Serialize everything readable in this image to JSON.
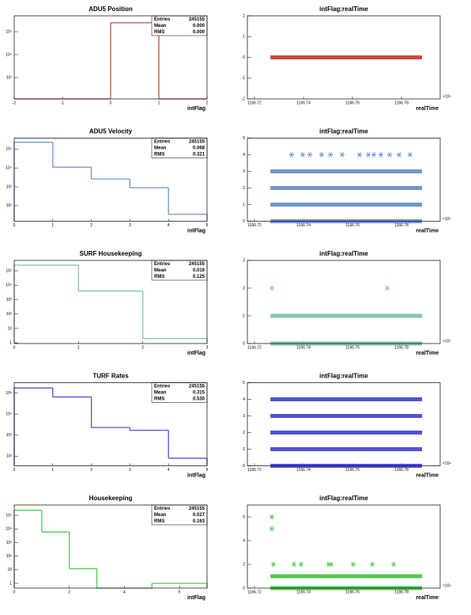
{
  "chart_data": [
    {
      "type": "histogram",
      "title": "ADU5 Position",
      "xlabel": "intFlag",
      "color": "#cc4a44",
      "log_y": true,
      "bins": [
        -2,
        -1,
        0,
        1,
        2
      ],
      "values": [
        0,
        0,
        245155,
        0
      ],
      "xlim": [
        -2,
        2
      ],
      "xticks": [
        -2,
        -1,
        0,
        1,
        2
      ],
      "ylim": [
        117,
        490000
      ],
      "yticks": [
        {
          "value": 1000,
          "label": "10³"
        },
        {
          "value": 10000,
          "label": "10⁴"
        },
        {
          "value": 100000,
          "label": "10⁵"
        }
      ],
      "stats": [
        {
          "label": "Entries",
          "value": "245155"
        },
        {
          "label": "Mean",
          "value": "0.000"
        },
        {
          "label": "RMS",
          "value": "0.000"
        }
      ]
    },
    {
      "type": "scatter",
      "title": "intFlag:realTime",
      "xlabel": "realTime",
      "x_multiplier": "×10⁹",
      "color": "#cc4a44",
      "xlim": [
        1166.7171,
        1166.7958
      ],
      "xticks": [
        1166.72,
        1166.74,
        1166.76,
        1166.78
      ],
      "ylim": [
        -2,
        2
      ],
      "yticks": [
        -2,
        -1,
        0,
        1,
        2
      ],
      "bands": [
        {
          "y": 0,
          "x": [
            1166.7265,
            1166.7884
          ]
        }
      ],
      "points": {
        "x": [],
        "y": []
      }
    },
    {
      "type": "histogram",
      "title": "ADU5 Velocity",
      "xlabel": "intFlag",
      "color": "#7094d0",
      "log_y": true,
      "bins": [
        0,
        1,
        2,
        3,
        4,
        5
      ],
      "values": [
        228000,
        11000,
        2600,
        900,
        35
      ],
      "xlim": [
        0,
        5
      ],
      "xticks": [
        0,
        1,
        2,
        3,
        4,
        5
      ],
      "ylim": [
        15,
        380000
      ],
      "yticks": [
        {
          "value": 100,
          "label": "10²"
        },
        {
          "value": 1000,
          "label": "10³"
        },
        {
          "value": 10000,
          "label": "10⁴"
        },
        {
          "value": 100000,
          "label": "10⁵"
        }
      ],
      "stats": [
        {
          "label": "Entries",
          "value": "245155"
        },
        {
          "label": "Mean",
          "value": "0.068"
        },
        {
          "label": "RMS",
          "value": "0.321"
        }
      ]
    },
    {
      "type": "scatter",
      "title": "intFlag:realTime",
      "xlabel": "realTime",
      "x_multiplier": "×10⁹",
      "color": "#7094d0",
      "xlim": [
        1166.7171,
        1166.7958
      ],
      "xticks": [
        1166.72,
        1166.74,
        1166.76,
        1166.78
      ],
      "ylim": [
        0,
        5
      ],
      "yticks": [
        0,
        1,
        2,
        3,
        4,
        5
      ],
      "bands": [
        {
          "y": 0,
          "x": [
            1166.7265,
            1166.7884
          ]
        },
        {
          "y": 1,
          "x": [
            1166.7265,
            1166.7884
          ]
        },
        {
          "y": 2,
          "x": [
            1166.7265,
            1166.7884
          ]
        },
        {
          "y": 3,
          "x": [
            1166.7265,
            1166.7884
          ]
        }
      ],
      "points": {
        "x": [
          1166.7352,
          1166.7397,
          1166.7426,
          1166.7474,
          1166.751,
          1166.7558,
          1166.7629,
          1166.7665,
          1166.7687,
          1166.7716,
          1166.7752,
          1166.779,
          1166.7835
        ],
        "y": [
          4,
          4,
          4,
          4,
          4,
          4,
          4,
          4,
          4,
          4,
          4,
          4,
          4
        ]
      }
    },
    {
      "type": "histogram",
      "title": "SURF Housekeeping",
      "xlabel": "intFlag",
      "color": "#80c8a8",
      "log_y": true,
      "bins": [
        0,
        1,
        2,
        3
      ],
      "values": [
        241235,
        3918,
        2
      ],
      "xlim": [
        0,
        3
      ],
      "xticks": [
        0,
        1,
        2,
        3
      ],
      "ylim": [
        0.9,
        520000
      ],
      "yticks": [
        1,
        10,
        {
          "value": 100,
          "label": "10²"
        },
        {
          "value": 1000,
          "label": "10³"
        },
        {
          "value": 10000,
          "label": "10⁴"
        },
        {
          "value": 100000,
          "label": "10⁵"
        }
      ],
      "stats": [
        {
          "label": "Entries",
          "value": "245155"
        },
        {
          "label": "Mean",
          "value": "0.016"
        },
        {
          "label": "RMS",
          "value": "0.125"
        }
      ]
    },
    {
      "type": "scatter",
      "title": "intFlag:realTime",
      "xlabel": "realTime",
      "x_multiplier": "×10⁹",
      "color": "#80c8a8",
      "xlim": [
        1166.7171,
        1166.7958
      ],
      "xticks": [
        1166.72,
        1166.74,
        1166.76,
        1166.78
      ],
      "ylim": [
        0,
        3
      ],
      "yticks": [
        0,
        1,
        2,
        3
      ],
      "bands": [
        {
          "y": 0,
          "x": [
            1166.7265,
            1166.7884
          ]
        },
        {
          "y": 1,
          "x": [
            1166.7265,
            1166.7884
          ]
        }
      ],
      "points": {
        "x": [
          1166.7271,
          1166.7742
        ],
        "y": [
          2,
          2
        ]
      }
    },
    {
      "type": "histogram",
      "title": "TURF Rates",
      "xlabel": "intFlag",
      "color": "#5252d4",
      "log_y": true,
      "bins": [
        0,
        1,
        2,
        3,
        4,
        5
      ],
      "values": [
        176000,
        65000,
        2300,
        1700,
        80
      ],
      "xlim": [
        0,
        5
      ],
      "xticks": [
        0,
        1,
        2,
        3,
        4,
        5
      ],
      "ylim": [
        35,
        310000
      ],
      "yticks": [
        {
          "value": 100,
          "label": "10²"
        },
        {
          "value": 1000,
          "label": "10³"
        },
        {
          "value": 10000,
          "label": "10⁴"
        },
        {
          "value": 100000,
          "label": "10⁵"
        }
      ],
      "stats": [
        {
          "label": "Entries",
          "value": "245155"
        },
        {
          "label": "Mean",
          "value": "0.315"
        },
        {
          "label": "RMS",
          "value": "0.530"
        }
      ]
    },
    {
      "type": "scatter",
      "title": "intFlag:realTime",
      "xlabel": "realTime",
      "x_multiplier": "×10⁹",
      "color": "#5252d4",
      "xlim": [
        1166.7171,
        1166.7958
      ],
      "xticks": [
        1166.72,
        1166.74,
        1166.76,
        1166.78
      ],
      "ylim": [
        0,
        5
      ],
      "yticks": [
        0,
        1,
        2,
        3,
        4,
        5
      ],
      "bands": [
        {
          "y": 0,
          "x": [
            1166.7265,
            1166.7884
          ]
        },
        {
          "y": 1,
          "x": [
            1166.7265,
            1166.7884
          ]
        },
        {
          "y": 2,
          "x": [
            1166.7265,
            1166.7884
          ]
        },
        {
          "y": 3,
          "x": [
            1166.7265,
            1166.7884
          ]
        },
        {
          "y": 4,
          "x": [
            1166.7265,
            1166.7884
          ]
        }
      ],
      "points": {
        "x": [],
        "y": []
      }
    },
    {
      "type": "histogram",
      "title": "Housekeeping",
      "xlabel": "intFlag",
      "color": "#50c850",
      "log_y": true,
      "bins": [
        0,
        1,
        2,
        3,
        4,
        5,
        6,
        7
      ],
      "values": [
        239140,
        6000,
        12,
        0,
        0,
        1,
        1
      ],
      "xlim": [
        0,
        7
      ],
      "xticks": [
        0,
        2,
        4,
        6
      ],
      "ylim": [
        0.45,
        575000
      ],
      "yticks": [
        1,
        10,
        {
          "value": 100,
          "label": "10²"
        },
        {
          "value": 1000,
          "label": "10³"
        },
        {
          "value": 10000,
          "label": "10⁴"
        },
        {
          "value": 100000,
          "label": "10⁵"
        }
      ],
      "stats": [
        {
          "label": "Entries",
          "value": "245155"
        },
        {
          "label": "Mean",
          "value": "0.027"
        },
        {
          "label": "RMS",
          "value": "0.163"
        }
      ]
    },
    {
      "type": "scatter",
      "title": "intFlag:realTime",
      "xlabel": "realTime",
      "x_multiplier": "×10⁹",
      "color": "#50c850",
      "xlim": [
        1166.7171,
        1166.7958
      ],
      "xticks": [
        1166.72,
        1166.74,
        1166.76,
        1166.78
      ],
      "ylim": [
        0,
        7
      ],
      "yticks": [
        0,
        2,
        4,
        6
      ],
      "bands": [
        {
          "y": 0,
          "x": [
            1166.7265,
            1166.7884
          ]
        },
        {
          "y": 1,
          "x": [
            1166.7265,
            1166.7884
          ]
        }
      ],
      "points": {
        "x": [
          1166.7271,
          1166.7271,
          1166.7277,
          1166.7361,
          1166.739,
          1166.7503,
          1166.7513,
          1166.7603,
          1166.7681,
          1166.7768
        ],
        "y": [
          6,
          5,
          2,
          2,
          2,
          2,
          2,
          2,
          2,
          2
        ]
      }
    }
  ]
}
